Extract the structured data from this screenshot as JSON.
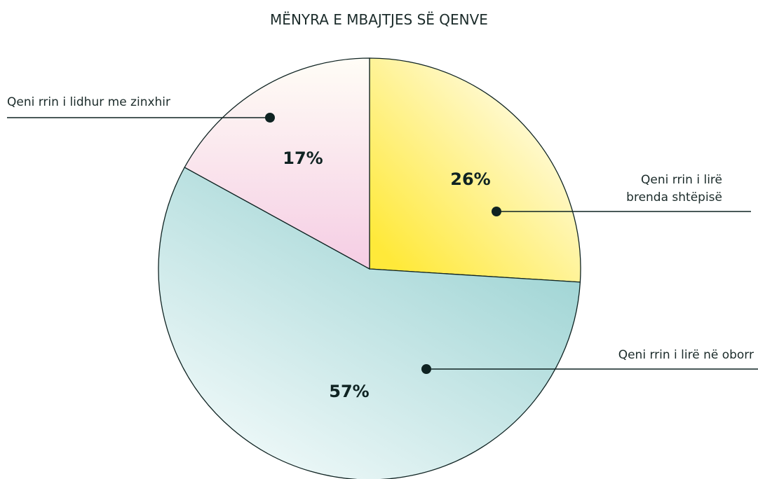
{
  "chart_data": {
    "type": "pie",
    "title": "MËNYRA E MBAJTJES SË QENVE",
    "categories": [
      "Qeni rrin i lirë brenda shtëpisë",
      "Qeni rrin i lirë në oborr",
      "Qeni rrin i lidhur me zinxhir"
    ],
    "values": [
      26,
      57,
      17
    ],
    "value_labels": [
      "26%",
      "57%",
      "17%"
    ],
    "colors": [
      "#ffe93a",
      "#96d0d0",
      "#f5cde4"
    ]
  }
}
